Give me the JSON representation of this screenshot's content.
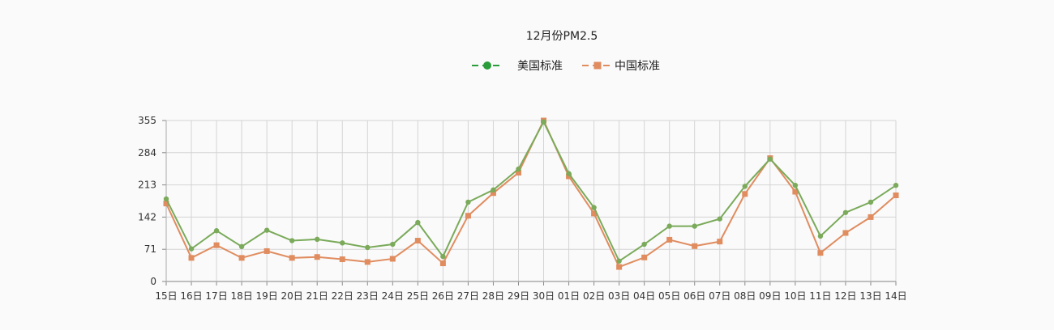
{
  "chart_data": {
    "type": "line",
    "title": "12月份PM2.5",
    "xlabel": "",
    "ylabel": "",
    "categories": [
      "15日",
      "16日",
      "17日",
      "18日",
      "19日",
      "20日",
      "21日",
      "22日",
      "23日",
      "24日",
      "25日",
      "26日",
      "27日",
      "28日",
      "29日",
      "30日",
      "01日",
      "02日",
      "03日",
      "04日",
      "05日",
      "06日",
      "07日",
      "08日",
      "09日",
      "10日",
      "11日",
      "12日",
      "13日",
      "14日"
    ],
    "yticks": [
      0,
      71,
      142,
      213,
      284,
      355
    ],
    "ylim": [
      0,
      355
    ],
    "grid": true,
    "legend_position": "top-center",
    "series": [
      {
        "name": "美国标准",
        "color": "#7aaa5a",
        "legend_color": "#2a9d3a",
        "marker": "circle",
        "values": [
          182,
          72,
          112,
          77,
          113,
          90,
          93,
          85,
          75,
          82,
          130,
          55,
          175,
          202,
          248,
          352,
          238,
          163,
          45,
          82,
          122,
          122,
          138,
          210,
          270,
          212,
          100,
          152,
          175,
          212
        ]
      },
      {
        "name": "中国标准",
        "color": "#e08c5f",
        "legend_color": "#e08c5f",
        "marker": "square",
        "values": [
          172,
          52,
          80,
          52,
          67,
          52,
          54,
          49,
          43,
          50,
          90,
          40,
          145,
          195,
          240,
          355,
          232,
          150,
          32,
          53,
          92,
          78,
          88,
          193,
          272,
          198,
          63,
          107,
          142,
          190
        ]
      }
    ]
  }
}
